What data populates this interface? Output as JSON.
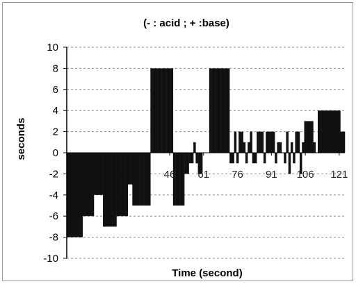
{
  "chart_data": {
    "type": "bar",
    "title": "(- : acid  ;  + :base)",
    "xlabel": "Time (second)",
    "ylabel": "seconds",
    "ylim": [
      -10,
      10
    ],
    "ytick_values": [
      10,
      8,
      6,
      4,
      2,
      0,
      -2,
      -4,
      -6,
      -8,
      -10
    ],
    "ytick_labels": [
      "10",
      "8",
      "6",
      "4",
      "2",
      "0",
      "-2",
      "-4",
      "-6",
      "-8",
      "-10"
    ],
    "xlim": [
      1,
      123
    ],
    "xtick_values": [
      46,
      61,
      76,
      91,
      106,
      121
    ],
    "xtick_labels": [
      "46",
      "61",
      "76",
      "91",
      "106",
      "121"
    ],
    "grid": "horizontal dashed",
    "legend": "none",
    "bar_color": "#111111",
    "x": [
      1,
      2,
      3,
      4,
      5,
      6,
      7,
      8,
      9,
      10,
      11,
      12,
      13,
      14,
      15,
      16,
      17,
      18,
      19,
      20,
      21,
      22,
      23,
      24,
      25,
      26,
      27,
      28,
      29,
      30,
      31,
      32,
      33,
      34,
      35,
      36,
      37,
      38,
      39,
      40,
      41,
      42,
      43,
      44,
      45,
      46,
      47,
      48,
      49,
      50,
      51,
      52,
      53,
      54,
      55,
      56,
      57,
      58,
      59,
      60,
      61,
      62,
      63,
      64,
      65,
      66,
      67,
      68,
      69,
      70,
      71,
      72,
      73,
      74,
      75,
      76,
      77,
      78,
      79,
      80,
      81,
      82,
      83,
      84,
      85,
      86,
      87,
      88,
      89,
      90,
      91,
      92,
      93,
      94,
      95,
      96,
      97,
      98,
      99,
      100,
      101,
      102,
      103,
      104,
      105,
      106,
      107,
      108,
      109,
      110,
      111,
      112,
      113,
      114,
      115,
      116,
      117,
      118,
      119,
      120,
      121,
      122,
      123
    ],
    "values": [
      -8,
      -8,
      -8,
      -8,
      -8,
      -8,
      -8,
      -6,
      -6,
      -6,
      -6,
      -6,
      -4,
      -4,
      -4,
      -4,
      -7,
      -7,
      -7,
      -7,
      -7,
      -7,
      -6,
      -6,
      -6,
      -6,
      -6,
      -3,
      -3,
      -5,
      -5,
      -5,
      -5,
      -5,
      -5,
      -5,
      -5,
      8,
      8,
      8,
      8,
      8,
      8,
      8,
      8,
      8,
      8,
      -5,
      -5,
      -5,
      -5,
      -5,
      -2,
      -2,
      -1,
      -1,
      1,
      -1,
      -2,
      -2,
      0,
      0,
      0,
      8,
      8,
      8,
      8,
      8,
      8,
      8,
      8,
      8,
      -1,
      -1,
      2,
      -1,
      2,
      2,
      1,
      -1,
      1,
      2,
      -1,
      -1,
      2,
      2,
      2,
      -1,
      2,
      2,
      2,
      2,
      -1,
      1,
      1,
      0,
      -1,
      2,
      -2,
      1,
      -1,
      2,
      2,
      -2,
      1,
      3,
      3,
      3,
      3,
      1,
      0,
      4,
      4,
      4,
      4,
      4,
      4,
      4,
      4,
      4,
      4,
      2,
      2
    ]
  }
}
